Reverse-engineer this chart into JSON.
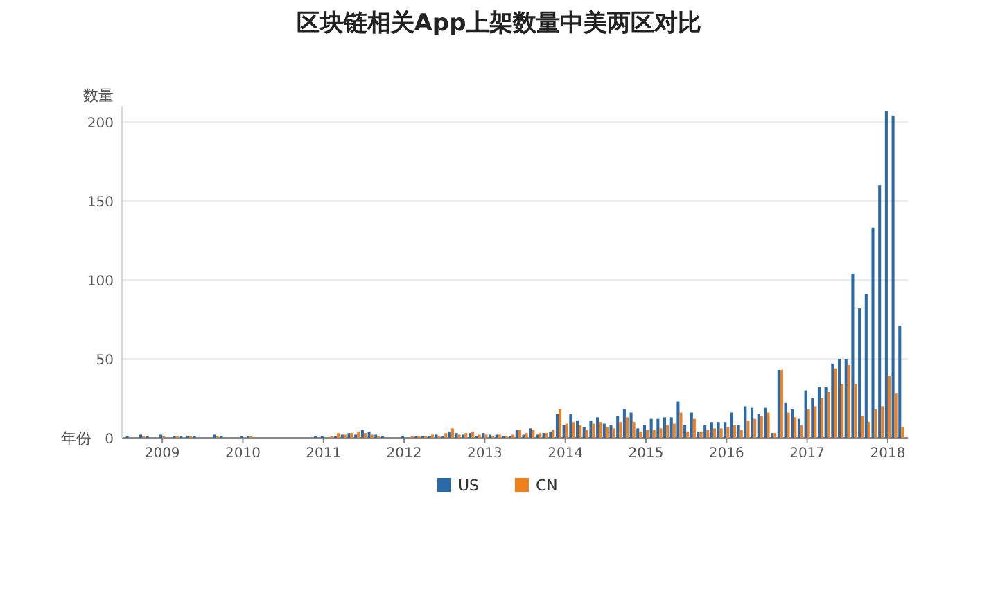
{
  "chart_data": {
    "type": "bar",
    "title": "区块链相关App上架数量中美两区对比",
    "xlabel": "年份",
    "ylabel": "数量",
    "x": [
      "2008-08",
      "2008-09",
      "2008-10",
      "2008-11",
      "2008-12",
      "2009-01",
      "2009-02",
      "2009-03",
      "2009-04",
      "2009-05",
      "2009-06",
      "2009-07",
      "2009-08",
      "2009-09",
      "2009-10",
      "2009-11",
      "2009-12",
      "2010-01",
      "2010-02",
      "2010-03",
      "2010-04",
      "2010-05",
      "2010-06",
      "2010-07",
      "2010-08",
      "2010-09",
      "2010-10",
      "2010-11",
      "2010-12",
      "2011-01",
      "2011-02",
      "2011-03",
      "2011-04",
      "2011-05",
      "2011-06",
      "2011-07",
      "2011-08",
      "2011-09",
      "2011-10",
      "2011-11",
      "2011-12",
      "2012-01",
      "2012-02",
      "2012-03",
      "2012-04",
      "2012-05",
      "2012-06",
      "2012-07",
      "2012-08",
      "2012-09",
      "2012-10",
      "2012-11",
      "2012-12",
      "2013-01",
      "2013-02",
      "2013-03",
      "2013-04",
      "2013-05",
      "2013-06",
      "2013-07",
      "2013-08",
      "2013-09",
      "2013-10",
      "2013-11",
      "2013-12",
      "2014-01",
      "2014-02",
      "2014-03",
      "2014-04",
      "2014-05",
      "2014-06",
      "2014-07",
      "2014-08",
      "2014-09",
      "2014-10",
      "2014-11",
      "2014-12",
      "2015-01",
      "2015-02",
      "2015-03",
      "2015-04",
      "2015-05",
      "2015-06",
      "2015-07",
      "2015-08",
      "2015-09",
      "2015-10",
      "2015-11",
      "2015-12",
      "2016-01",
      "2016-02",
      "2016-03",
      "2016-04",
      "2016-05",
      "2016-06",
      "2016-07",
      "2016-08",
      "2016-09",
      "2016-10",
      "2016-11",
      "2016-12",
      "2017-01",
      "2017-02",
      "2017-03",
      "2017-04",
      "2017-05",
      "2017-06",
      "2017-07",
      "2017-08",
      "2017-09",
      "2017-10",
      "2017-11",
      "2017-12",
      "2018-01",
      "2018-02",
      "2018-03"
    ],
    "series": [
      {
        "name": "US",
        "color": "#2b6aa8",
        "values": [
          1,
          0,
          2,
          1,
          0,
          2,
          0,
          1,
          1,
          1,
          1,
          0,
          0,
          2,
          1,
          0,
          0,
          1,
          1,
          0,
          0,
          0,
          0,
          0,
          0,
          0,
          0,
          0,
          1,
          1,
          0,
          1,
          2,
          3,
          2,
          5,
          4,
          2,
          1,
          0,
          0,
          1,
          0,
          1,
          1,
          1,
          2,
          1,
          4,
          3,
          2,
          3,
          1,
          3,
          2,
          2,
          1,
          1,
          5,
          2,
          6,
          2,
          3,
          4,
          15,
          8,
          15,
          11,
          7,
          11,
          13,
          9,
          8,
          14,
          18,
          16,
          6,
          8,
          12,
          12,
          13,
          13,
          23,
          8,
          16,
          4,
          8,
          10,
          10,
          10,
          16,
          8,
          20,
          19,
          15,
          19,
          3,
          43,
          22,
          18,
          12,
          30,
          25,
          32,
          32,
          47,
          50,
          50,
          104,
          82,
          91,
          133,
          160,
          207,
          204,
          71
        ]
      },
      {
        "name": "CN",
        "color": "#f07f1e",
        "values": [
          0,
          0,
          1,
          0,
          0,
          1,
          0,
          1,
          0,
          1,
          0,
          0,
          0,
          1,
          0,
          0,
          0,
          0,
          1,
          0,
          0,
          0,
          0,
          0,
          0,
          0,
          0,
          0,
          0,
          0,
          1,
          3,
          2,
          3,
          4,
          3,
          2,
          1,
          0,
          0,
          0,
          0,
          1,
          1,
          1,
          2,
          1,
          3,
          6,
          2,
          3,
          4,
          2,
          2,
          1,
          2,
          1,
          2,
          5,
          3,
          5,
          3,
          3,
          5,
          18,
          9,
          10,
          8,
          5,
          9,
          10,
          7,
          6,
          10,
          13,
          10,
          4,
          5,
          5,
          6,
          8,
          9,
          16,
          4,
          12,
          4,
          5,
          6,
          6,
          7,
          8,
          5,
          11,
          12,
          14,
          16,
          3,
          43,
          16,
          13,
          8,
          18,
          20,
          25,
          29,
          44,
          34,
          46,
          34,
          14,
          10,
          18,
          20,
          39,
          28,
          7
        ]
      }
    ],
    "xlim": [
      "2008-07",
      "2018-04"
    ],
    "xticks": [
      {
        "value": "2009-01",
        "label": "2009"
      },
      {
        "value": "2010-01",
        "label": "2010"
      },
      {
        "value": "2011-01",
        "label": "2011"
      },
      {
        "value": "2012-01",
        "label": "2012"
      },
      {
        "value": "2013-01",
        "label": "2013"
      },
      {
        "value": "2014-01",
        "label": "2014"
      },
      {
        "value": "2015-01",
        "label": "2015"
      },
      {
        "value": "2016-01",
        "label": "2016"
      },
      {
        "value": "2017-01",
        "label": "2017"
      },
      {
        "value": "2018-01",
        "label": "2018"
      }
    ],
    "ylim": [
      0,
      210
    ],
    "yticks": [
      0,
      50,
      100,
      150,
      200
    ],
    "grid": "y",
    "legend": "bottom"
  }
}
